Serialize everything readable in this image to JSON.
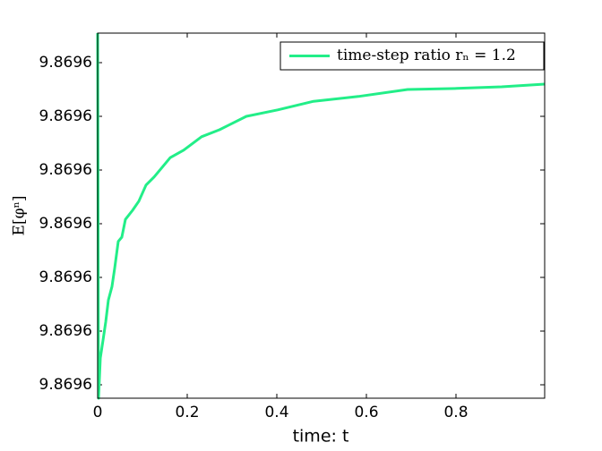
{
  "chart_data": {
    "type": "line",
    "xlabel": "time: t",
    "ylabel": "E[φⁿ]",
    "x": [
      0,
      0.002,
      0.006,
      0.012,
      0.018,
      0.024,
      0.032,
      0.038,
      0.046,
      0.054,
      0.062,
      0.078,
      0.092,
      0.108,
      0.126,
      0.162,
      0.192,
      0.232,
      0.272,
      0.332,
      0.402,
      0.482,
      0.582,
      0.692,
      0.802,
      0.902,
      0.998
    ],
    "series": [
      {
        "name": "time-step ratio rₙ = 1.2",
        "color": "#22ee88",
        "values": [
          9.86960755,
          9.86960075,
          9.8696015,
          9.86960183,
          9.86960217,
          9.86960258,
          9.86960283,
          9.86960317,
          9.86960367,
          9.86960375,
          9.86960408,
          9.86960425,
          9.86960442,
          9.86960472,
          9.86960487,
          9.86960523,
          9.86960537,
          9.86960562,
          9.86960575,
          9.869606,
          9.86960612,
          9.86960628,
          9.86960637,
          9.8696065,
          9.86960652,
          9.86960655,
          9.8696066
        ]
      }
    ],
    "xlim": [
      0,
      0.998
    ],
    "xticks": [
      0,
      0.2,
      0.4,
      0.6,
      0.8
    ],
    "ylim": [
      9.86960075,
      9.86960755
    ],
    "yticks": [
      {
        "value": 9.869601,
        "label": "9.8696"
      },
      {
        "value": 9.869602,
        "label": "9.8696"
      },
      {
        "value": 9.869603,
        "label": "9.8696"
      },
      {
        "value": 9.869604,
        "label": "9.8696"
      },
      {
        "value": 9.869605,
        "label": "9.8696"
      },
      {
        "value": 9.869606,
        "label": "9.8696"
      },
      {
        "value": 9.869607,
        "label": "9.8696"
      }
    ],
    "grid": false,
    "legend": "upper right"
  }
}
